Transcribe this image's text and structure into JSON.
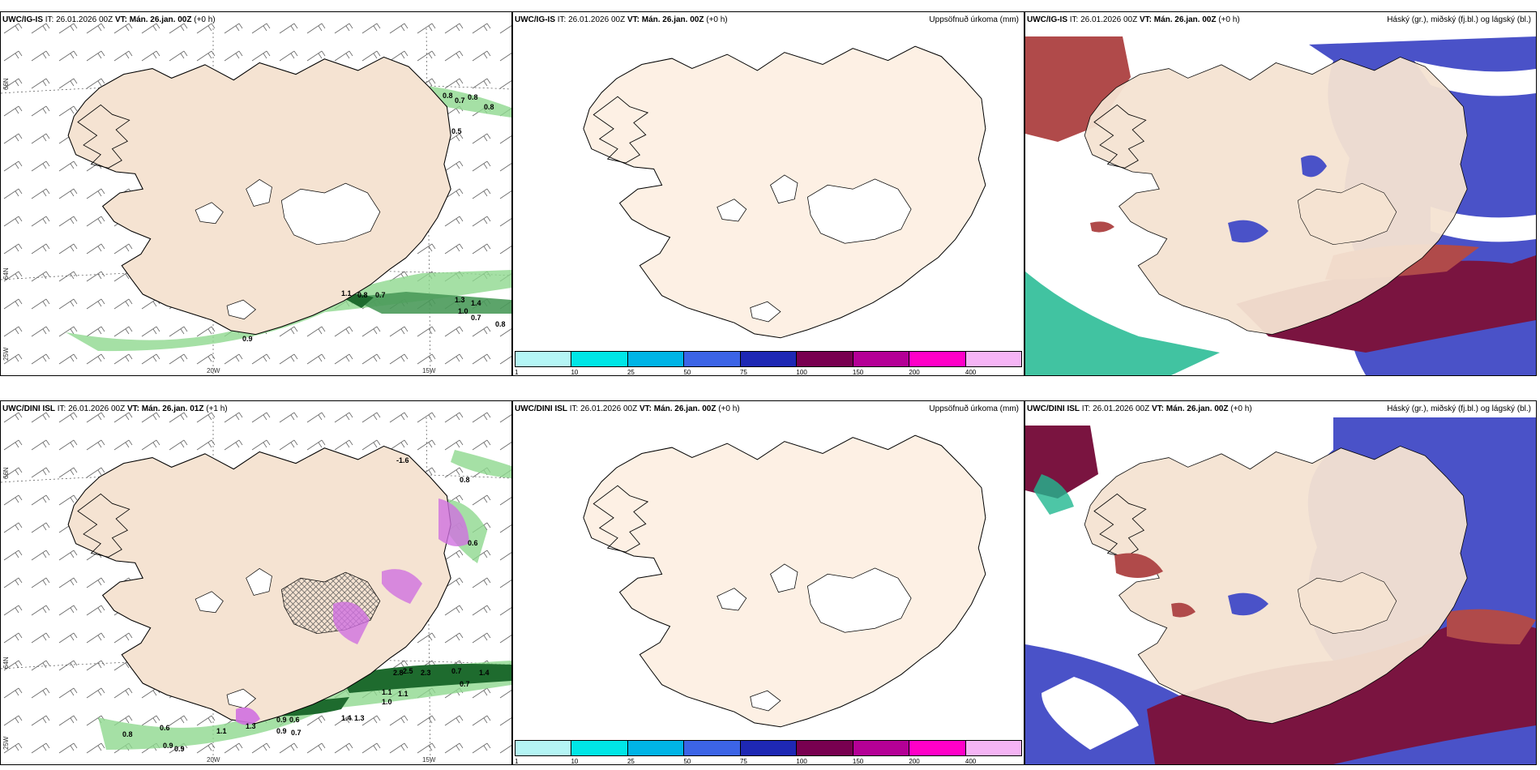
{
  "panels": [
    {
      "model": "UWC/IG-IS",
      "it_label": "IT:",
      "it": "26.01.2026 00Z",
      "vt_label": "VT:",
      "vt": "Mán. 26.jan. 00Z",
      "lead": "(+0 h)",
      "variable": ""
    },
    {
      "model": "UWC/IG-IS",
      "it_label": "IT:",
      "it": "26.01.2026 00Z",
      "vt_label": "VT:",
      "vt": "Mán. 26.jan. 00Z",
      "lead": "(+0 h)",
      "variable": "Uppsöfnuð úrkoma (mm)"
    },
    {
      "model": "UWC/IG-IS",
      "it_label": "IT:",
      "it": "26.01.2026 00Z",
      "vt_label": "VT:",
      "vt": "Mán. 26.jan. 00Z",
      "lead": "(+0 h)",
      "variable": "Háský (gr.), miðský (fj.bl.) og lágský (bl.)"
    },
    {
      "model": "UWC/DINI ISL",
      "it_label": "IT:",
      "it": "26.01.2026 00Z",
      "vt_label": "VT:",
      "vt": "Mán. 26.jan. 01Z",
      "lead": "(+1 h)",
      "variable": ""
    },
    {
      "model": "UWC/DINI ISL",
      "it_label": "IT:",
      "it": "26.01.2026 00Z",
      "vt_label": "VT:",
      "vt": "Mán. 26.jan. 00Z",
      "lead": "(+0 h)",
      "variable": "Uppsöfnuð úrkoma (mm)"
    },
    {
      "model": "UWC/DINI ISL",
      "it_label": "IT:",
      "it": "26.01.2026 00Z",
      "vt_label": "VT:",
      "vt": "Mán. 26.jan. 00Z",
      "lead": "(+0 h)",
      "variable": "Háský (gr.), miðský (fj.bl.) og lágský (bl.)"
    }
  ],
  "axes": {
    "lat_66": "66N",
    "lat_64": "64N",
    "lon_25": "25W",
    "lon_20": "20W",
    "lon_15": "15W"
  },
  "legend": {
    "ticks": [
      "1",
      "10",
      "25",
      "50",
      "75",
      "100",
      "150",
      "200",
      "400"
    ],
    "colors": [
      "#b4f5f5",
      "#00e6e6",
      "#00b4e6",
      "#3c64e6",
      "#1e28b4",
      "#780050",
      "#b40096",
      "#ff00c8",
      "#f5b4f5"
    ]
  },
  "contours_top": [
    "0.8",
    "0.7",
    "0.8",
    "0.8",
    "0.5",
    "1.1",
    "0.8",
    "0.7",
    "1.3",
    "1.4",
    "1.0",
    "0.7",
    "0.8",
    "0.9"
  ],
  "contours_bottom": [
    "-1.6",
    "0.8",
    "0.6",
    "2.8",
    "2.5",
    "2.3",
    "0.7",
    "1.4",
    "0.7",
    "1.1",
    "1.1",
    "1.0",
    "1.3",
    "1.4",
    "0.9",
    "0.6",
    "0.9",
    "0.7",
    "1.1",
    "1.3",
    "0.8",
    "0.6",
    "0.9",
    "0.9"
  ],
  "colors": {
    "land": "#f5e3d2",
    "land_light": "#fdf0e4",
    "precip_green": "#8fd88f",
    "precip_dark": "#1e6b2e",
    "precip_magenta": "#d070e0",
    "high_cloud": "#b04a4a",
    "mid_cloud": "#7a1440",
    "low_cloud": "#4a52c8",
    "cloud_green": "#20b890"
  }
}
